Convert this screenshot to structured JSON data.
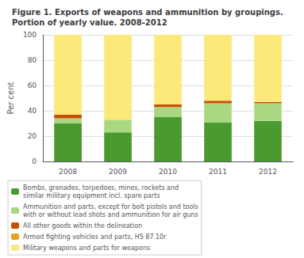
{
  "chart_data": {
    "type": "bar",
    "stacked": true,
    "title": "Figure 1. Exports of weapons and ammunition by groupings.\nPortion of yearly value. 2008-2012",
    "ylabel": "Per cent",
    "categories": [
      "2008",
      "2009",
      "2010",
      "2011",
      "2012"
    ],
    "series": [
      {
        "name": "Bombs, grenades, torpedoes, mines, rockets and\nsimilar military equipment incl. spare parts",
        "color": "#4a9a2f",
        "values": [
          30,
          23,
          35,
          31,
          32
        ]
      },
      {
        "name": "Ammunition and parts, except for bolt pistols and tools\nwith or without lead shots and ammunition for air guns",
        "color": "#aad882",
        "values": [
          4,
          10,
          8,
          15,
          14
        ]
      },
      {
        "name": "All other goods within the delineation",
        "color": "#c85000",
        "values": [
          3,
          0,
          2,
          2,
          1
        ]
      },
      {
        "name": "Armed fighting vehicles and parts, HS 87.10r",
        "color": "#e8a020",
        "values": [
          0,
          0,
          0,
          0,
          0
        ]
      },
      {
        "name": "Military weapons and parts for weapons",
        "color": "#fce97a",
        "values": [
          63,
          67,
          55,
          52,
          53
        ]
      }
    ],
    "ylim": [
      0,
      100
    ],
    "yticks": [
      0,
      20,
      40,
      60,
      80,
      100
    ],
    "grid": true,
    "legend": "lower left"
  }
}
